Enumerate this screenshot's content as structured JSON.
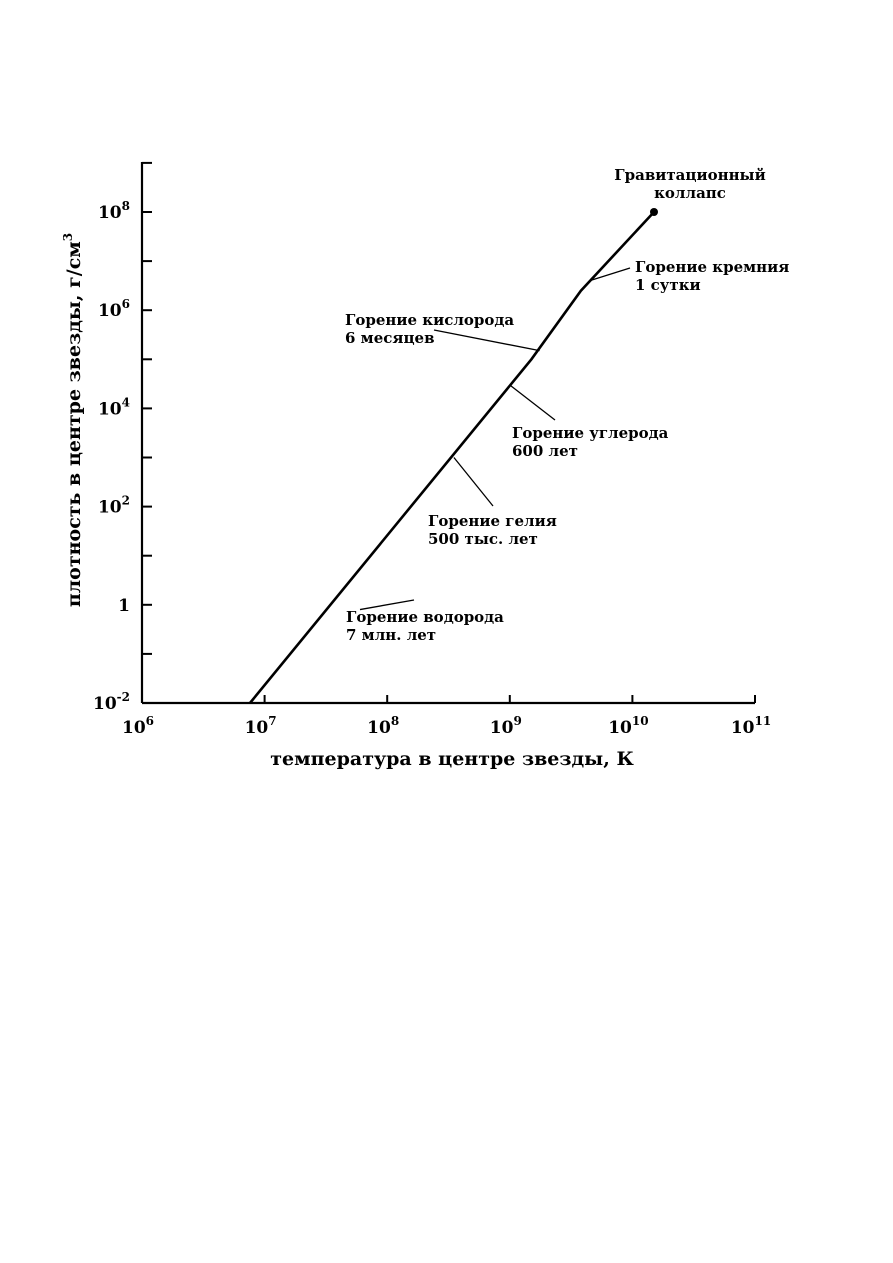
{
  "chart_data": {
    "type": "line",
    "xlabel": "температура в центре звезды, К",
    "ylabel": "плотность в центре звезды, г/см",
    "ylabel_exp": "3",
    "x_scale": "log",
    "y_scale": "log",
    "xlim": [
      1000000,
      100000000000
    ],
    "ylim": [
      0.01,
      1000000000
    ],
    "grid": false,
    "x_ticks": [
      {
        "value": 1000000,
        "base": "10",
        "exp": "6"
      },
      {
        "value": 10000000,
        "base": "10",
        "exp": "7"
      },
      {
        "value": 100000000,
        "base": "10",
        "exp": "8"
      },
      {
        "value": 1000000000,
        "base": "10",
        "exp": "9"
      },
      {
        "value": 10000000000,
        "base": "10",
        "exp": "10"
      },
      {
        "value": 100000000000,
        "base": "10",
        "exp": "11"
      }
    ],
    "y_ticks": [
      {
        "value": 0.01,
        "base": "10",
        "exp": "-2"
      },
      {
        "value": 1,
        "base": "1",
        "exp": ""
      },
      {
        "value": 100,
        "base": "10",
        "exp": "2"
      },
      {
        "value": 10000,
        "base": "10",
        "exp": "4"
      },
      {
        "value": 1000000,
        "base": "10",
        "exp": "6"
      },
      {
        "value": 100000000,
        "base": "10",
        "exp": "8"
      }
    ],
    "y_minor_ticks": [
      0.1,
      10,
      1000,
      100000,
      10000000,
      1000000000
    ],
    "series": [
      {
        "x": [
          7600000,
          1500000000,
          3800000000,
          15000000000
        ],
        "y": [
          0.01,
          100000,
          2500000,
          100000000
        ]
      }
    ],
    "endpoint": {
      "x": 15000000000,
      "y": 100000000
    },
    "annotations": [
      {
        "lines": [
          "Гравитационный",
          "коллапс"
        ],
        "x": 15000000000,
        "y": 100000000
      },
      {
        "lines": [
          "Горение кремния",
          "1 сутки"
        ],
        "x": 4500000000,
        "y": 4000000
      },
      {
        "lines": [
          "Горение кислорода",
          "6 месяцев"
        ],
        "x": 1750000000,
        "y": 150000
      },
      {
        "lines": [
          "Горение углерода",
          "600 лет"
        ],
        "x": 1000000000,
        "y": 30000
      },
      {
        "lines": [
          "Горение гелия",
          "500 тыс. лет"
        ],
        "x": 350000000,
        "y": 1000
      },
      {
        "lines": [
          "Горение водорода",
          "7 млн. лет"
        ],
        "x": 60000000,
        "y": 0.8
      }
    ]
  }
}
